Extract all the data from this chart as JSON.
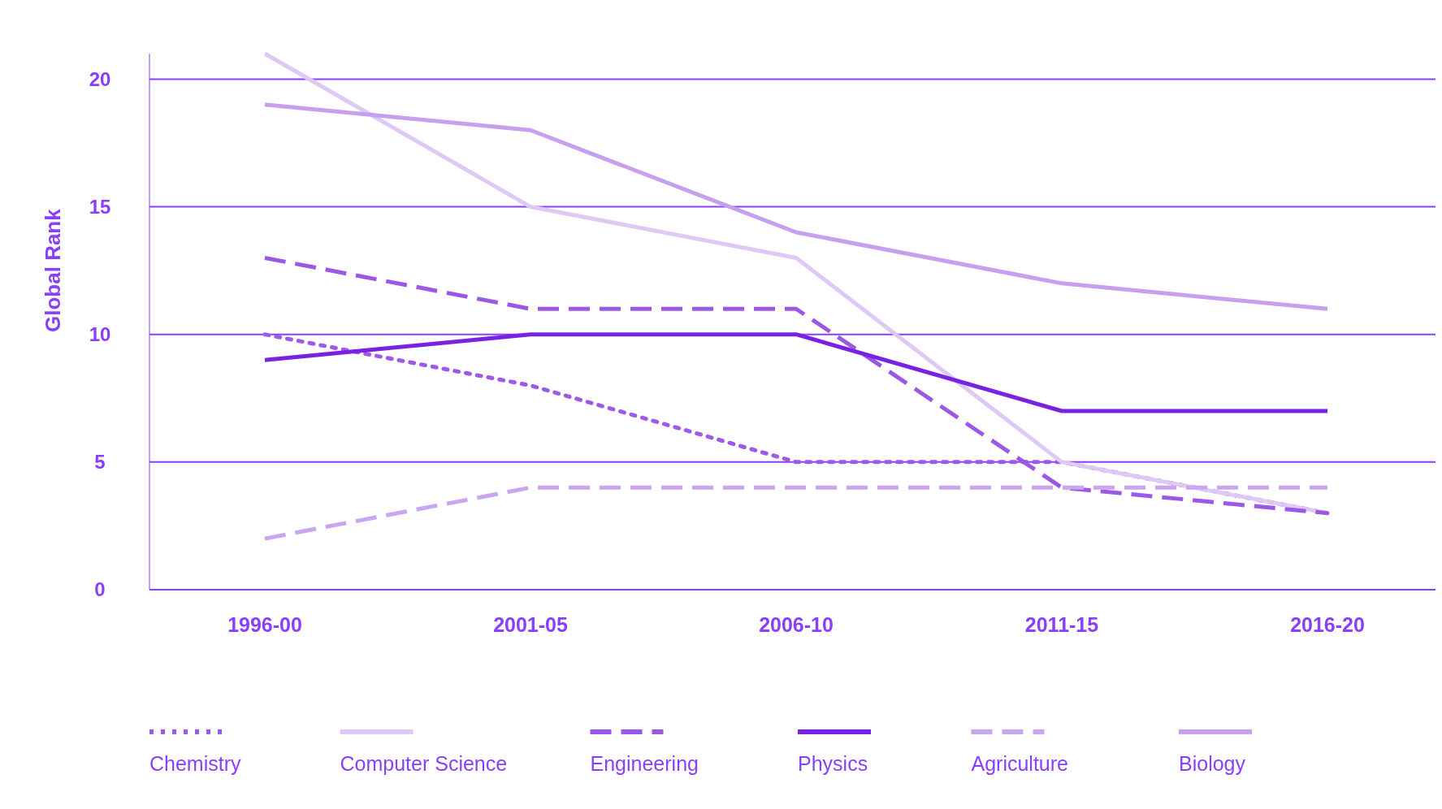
{
  "chart_data": {
    "type": "line",
    "ylabel": "Global Rank",
    "categories": [
      "1996-00",
      "2001-05",
      "2006-10",
      "2011-15",
      "2016-20"
    ],
    "ylim": [
      0,
      21
    ],
    "yticks": [
      0,
      5,
      10,
      15,
      20
    ],
    "grid": "y",
    "legend": "bottom",
    "series": [
      {
        "name": "Chemistry",
        "color": "#9d5ae6",
        "line_style": "dotted",
        "values": [
          10,
          8,
          5,
          5,
          3
        ]
      },
      {
        "name": "Computer Science",
        "color": "#ddc8f6",
        "line_style": "solid",
        "values": [
          21,
          15,
          13,
          5,
          3
        ]
      },
      {
        "name": "Engineering",
        "color": "#9b58e4",
        "line_style": "dashed",
        "values": [
          13,
          11,
          11,
          4,
          3
        ]
      },
      {
        "name": "Physics",
        "color": "#7a22e2",
        "line_style": "solid",
        "values": [
          9,
          10,
          10,
          7,
          7
        ]
      },
      {
        "name": "Agriculture",
        "color": "#caa6f0",
        "line_style": "dashed",
        "values": [
          2,
          4,
          4,
          4,
          4
        ]
      },
      {
        "name": "Biology",
        "color": "#c6a0ee",
        "line_style": "solid",
        "values": [
          19,
          18,
          14,
          12,
          11
        ]
      }
    ]
  }
}
